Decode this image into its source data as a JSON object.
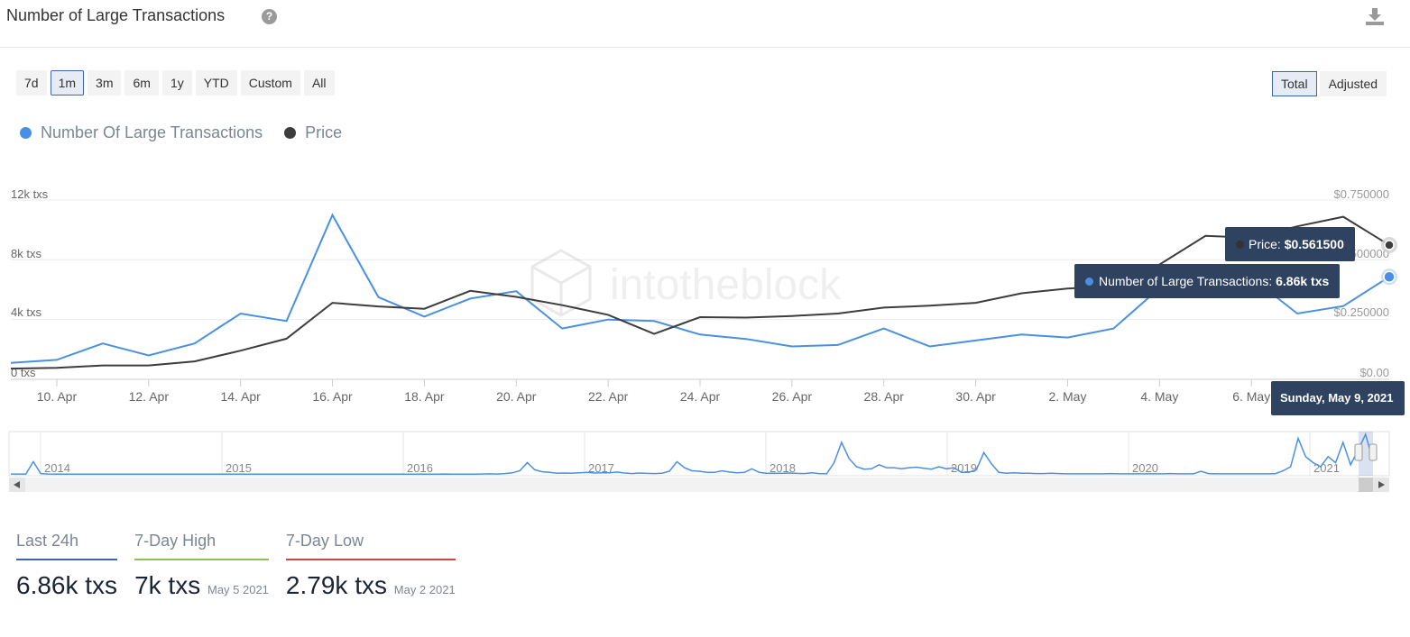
{
  "header": {
    "title": "Number of Large Transactions",
    "help_icon": "question-circle-icon",
    "download_icon": "download-icon"
  },
  "ranges": [
    "7d",
    "1m",
    "3m",
    "6m",
    "1y",
    "YTD",
    "Custom",
    "All"
  ],
  "active_range": "1m",
  "modes": [
    "Total",
    "Adjusted"
  ],
  "active_mode": "Total",
  "watermark": "intotheblock",
  "colors": {
    "transactions": "#4a90e2",
    "price": "#3d3d3d",
    "last24h": "#3c63b4",
    "high": "#8bc34a",
    "low": "#d0453a"
  },
  "chart_data": {
    "type": "line",
    "x": [
      "9 Apr",
      "10 Apr",
      "11 Apr",
      "12 Apr",
      "13 Apr",
      "14 Apr",
      "15 Apr",
      "16 Apr",
      "17 Apr",
      "18 Apr",
      "19 Apr",
      "20 Apr",
      "21 Apr",
      "22 Apr",
      "23 Apr",
      "24 Apr",
      "25 Apr",
      "26 Apr",
      "27 Apr",
      "28 Apr",
      "29 Apr",
      "30 Apr",
      "1 May",
      "2 May",
      "3 May",
      "4 May",
      "5 May",
      "6 May",
      "7 May",
      "8 May",
      "9 May"
    ],
    "x_ticks": [
      "10. Apr",
      "12. Apr",
      "14. Apr",
      "16. Apr",
      "18. Apr",
      "20. Apr",
      "22. Apr",
      "24. Apr",
      "26. Apr",
      "28. Apr",
      "30. Apr",
      "2. May",
      "4. May",
      "6. May"
    ],
    "series": [
      {
        "name": "Number Of Large Transactions",
        "axis": "left",
        "values": [
          1.1,
          1.3,
          2.4,
          1.6,
          2.4,
          4.4,
          3.9,
          11.0,
          5.5,
          4.2,
          5.4,
          5.9,
          3.4,
          4.0,
          3.9,
          3.0,
          2.7,
          2.2,
          2.3,
          3.4,
          2.2,
          2.6,
          3.0,
          2.8,
          3.4,
          6.1,
          7.0,
          6.8,
          4.4,
          4.9,
          6.86
        ]
      },
      {
        "name": "Price",
        "axis": "right",
        "values": [
          0.045,
          0.048,
          0.058,
          0.058,
          0.075,
          0.12,
          0.17,
          0.32,
          0.305,
          0.295,
          0.37,
          0.345,
          0.31,
          0.27,
          0.19,
          0.26,
          0.258,
          0.265,
          0.275,
          0.3,
          0.308,
          0.32,
          0.36,
          0.38,
          0.39,
          0.48,
          0.6,
          0.592,
          0.64,
          0.68,
          0.5615
        ]
      }
    ],
    "y_left": {
      "ticks": [
        "12k txs",
        "8k txs",
        "4k txs",
        "0 txs"
      ],
      "range": [
        0,
        12
      ]
    },
    "y_right": {
      "ticks": [
        "$0.750000",
        "$0.500000",
        "$0.250000",
        "$0.00"
      ],
      "range": [
        0,
        0.75
      ]
    },
    "tooltip": {
      "price_label": "Price:",
      "price_value": "$0.561500",
      "nlt_label": "Number of Large Transactions:",
      "nlt_value": "6.86k txs",
      "date": "Sunday, May 9, 2021"
    },
    "navigator": {
      "years": [
        "2014",
        "2015",
        "2016",
        "2017",
        "2018",
        "2019",
        "2020",
        "2021"
      ],
      "values": [
        0.4,
        0.4,
        0.3,
        6.5,
        0.6,
        0.4,
        0.3,
        0.3,
        0.3,
        0.3,
        0.3,
        0.3,
        0.3,
        0.3,
        0.3,
        0.3,
        0.3,
        0.3,
        0.3,
        0.3,
        0.3,
        0.3,
        0.3,
        0.3,
        0.3,
        0.3,
        0.3,
        0.3,
        0.3,
        0.3,
        0.3,
        0.3,
        0.3,
        0.3,
        0.3,
        0.3,
        0.3,
        0.3,
        0.3,
        0.3,
        0.3,
        0.3,
        0.3,
        0.3,
        0.3,
        0.3,
        0.3,
        0.3,
        0.3,
        0.3,
        0.3,
        0.3,
        0.3,
        0.3,
        0.3,
        0.3,
        0.3,
        0.3,
        0.4,
        0.3,
        0.3,
        0.3,
        0.3,
        0.4,
        0.5,
        0.4,
        0.6,
        1.0,
        2.0,
        6.0,
        2.5,
        1.5,
        1.2,
        0.8,
        0.9,
        0.8,
        1.0,
        1.2,
        0.9,
        1.0,
        1.0,
        1.4,
        0.9,
        0.6,
        0.9,
        0.7,
        0.6,
        0.8,
        1.8,
        6.5,
        3.5,
        2.0,
        1.8,
        1.2,
        1.2,
        2.0,
        1.4,
        1.0,
        1.2,
        3.0,
        1.2,
        0.7,
        0.8,
        0.7,
        0.9,
        0.7,
        0.6,
        1.0,
        0.6,
        0.5,
        6.0,
        16.0,
        8.0,
        4.0,
        2.8,
        3.0,
        5.0,
        3.5,
        3.5,
        3.0,
        3.5,
        3.8,
        3.2,
        2.8,
        4.0,
        3.0,
        3.5,
        1.2,
        1.2,
        2.5,
        11.0,
        5.5,
        1.2,
        0.8,
        1.0,
        0.8,
        0.8,
        0.6,
        0.6,
        0.8,
        0.6,
        0.5,
        0.5,
        0.5,
        0.5,
        0.5,
        0.5,
        0.6,
        0.5,
        0.5,
        0.5,
        0.5,
        0.5,
        0.5,
        0.5,
        0.6,
        0.5,
        0.5,
        0.5,
        1.8,
        0.6,
        0.5,
        0.5,
        0.5,
        0.5,
        0.5,
        0.5,
        0.5,
        0.5,
        0.6,
        2.0,
        4.0,
        18.0,
        9.0,
        6.0,
        4.0,
        9.0,
        6.0,
        16.0,
        5.0,
        12.0,
        20.0,
        6.9
      ]
    }
  },
  "stats": [
    {
      "label": "Last 24h",
      "value": "6.86k txs",
      "date": ""
    },
    {
      "label": "7-Day High",
      "value": "7k txs",
      "date": "May 5 2021"
    },
    {
      "label": "7-Day Low",
      "value": "2.79k txs",
      "date": "May 2 2021"
    }
  ]
}
